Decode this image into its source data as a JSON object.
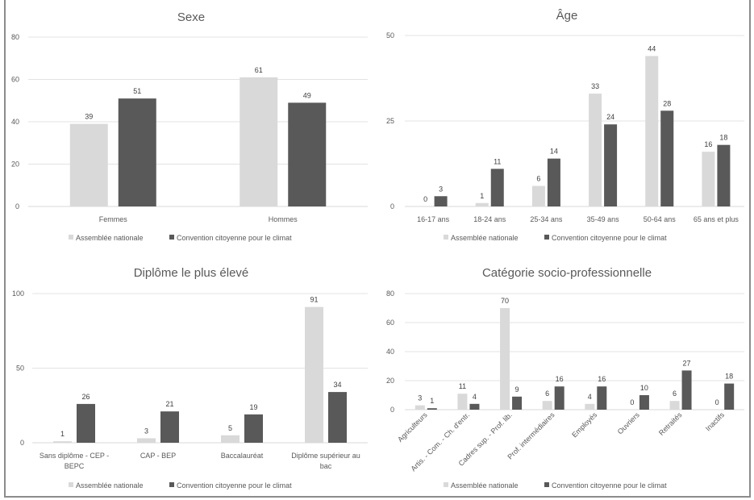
{
  "legend": {
    "series": [
      {
        "name": "Assemblée nationale",
        "color": "#d9d9d9"
      },
      {
        "name": "Convention citoyenne pour le climat",
        "color": "#595959"
      }
    ]
  },
  "chart_data": [
    {
      "id": "sexe",
      "type": "bar",
      "title": "Sexe",
      "xlabel": "",
      "ylabel": "",
      "categories": [
        "Femmes",
        "Hommes"
      ],
      "series": [
        {
          "name": "Assemblée nationale",
          "values": [
            39,
            61
          ]
        },
        {
          "name": "Convention citoyenne pour le climat",
          "values": [
            51,
            49
          ]
        }
      ],
      "ylim": [
        0,
        80
      ],
      "yticks": [
        0,
        20,
        40,
        60,
        80
      ],
      "grid": true,
      "legend_position": "bottom",
      "label_rotation": 0
    },
    {
      "id": "age",
      "type": "bar",
      "title": "Âge",
      "xlabel": "",
      "ylabel": "",
      "categories": [
        "16-17 ans",
        "18-24 ans",
        "25-34 ans",
        "35-49 ans",
        "50-64 ans",
        "65 ans et plus"
      ],
      "series": [
        {
          "name": "Assemblée nationale",
          "values": [
            0,
            1,
            6,
            33,
            44,
            16
          ]
        },
        {
          "name": "Convention citoyenne pour le climat",
          "values": [
            3,
            11,
            14,
            24,
            28,
            18
          ]
        }
      ],
      "ylim": [
        0,
        50
      ],
      "yticks": [
        0,
        25,
        50
      ],
      "grid": true,
      "legend_position": "bottom",
      "label_rotation": 0
    },
    {
      "id": "diplome",
      "type": "bar",
      "title": "Diplôme le plus élevé",
      "xlabel": "",
      "ylabel": "",
      "categories": [
        "Sans diplôme - CEP - BEPC",
        "CAP - BEP",
        "Baccalauréat",
        "Diplôme supérieur au bac"
      ],
      "category_lines": [
        [
          "Sans diplôme - CEP -",
          "BEPC"
        ],
        [
          "CAP - BEP"
        ],
        [
          "Baccalauréat"
        ],
        [
          "Diplôme supérieur au",
          "bac"
        ]
      ],
      "series": [
        {
          "name": "Assemblée nationale",
          "values": [
            1,
            3,
            5,
            91
          ]
        },
        {
          "name": "Convention citoyenne pour le climat",
          "values": [
            26,
            21,
            19,
            34
          ]
        }
      ],
      "ylim": [
        0,
        100
      ],
      "yticks": [
        0,
        50,
        100
      ],
      "grid": true,
      "legend_position": "bottom",
      "label_rotation": 0
    },
    {
      "id": "csp",
      "type": "bar",
      "title": "Catégorie socio-professionnelle",
      "xlabel": "",
      "ylabel": "",
      "categories": [
        "Agriculteurs",
        "Artis. - Com. - Ch. d'entr.",
        "Cadres sup. - Prof. lib.",
        "Prof. intermédiaires",
        "Employés",
        "Ouvriers",
        "Retraités",
        "Inactifs"
      ],
      "series": [
        {
          "name": "Assemblée nationale",
          "values": [
            3,
            11,
            70,
            6,
            4,
            0,
            6,
            0
          ]
        },
        {
          "name": "Convention citoyenne pour le climat",
          "values": [
            1,
            4,
            9,
            16,
            16,
            10,
            27,
            18
          ]
        }
      ],
      "ylim": [
        0,
        80
      ],
      "yticks": [
        0,
        20,
        40,
        60,
        80
      ],
      "grid": true,
      "legend_position": "bottom",
      "label_rotation": -45
    }
  ]
}
